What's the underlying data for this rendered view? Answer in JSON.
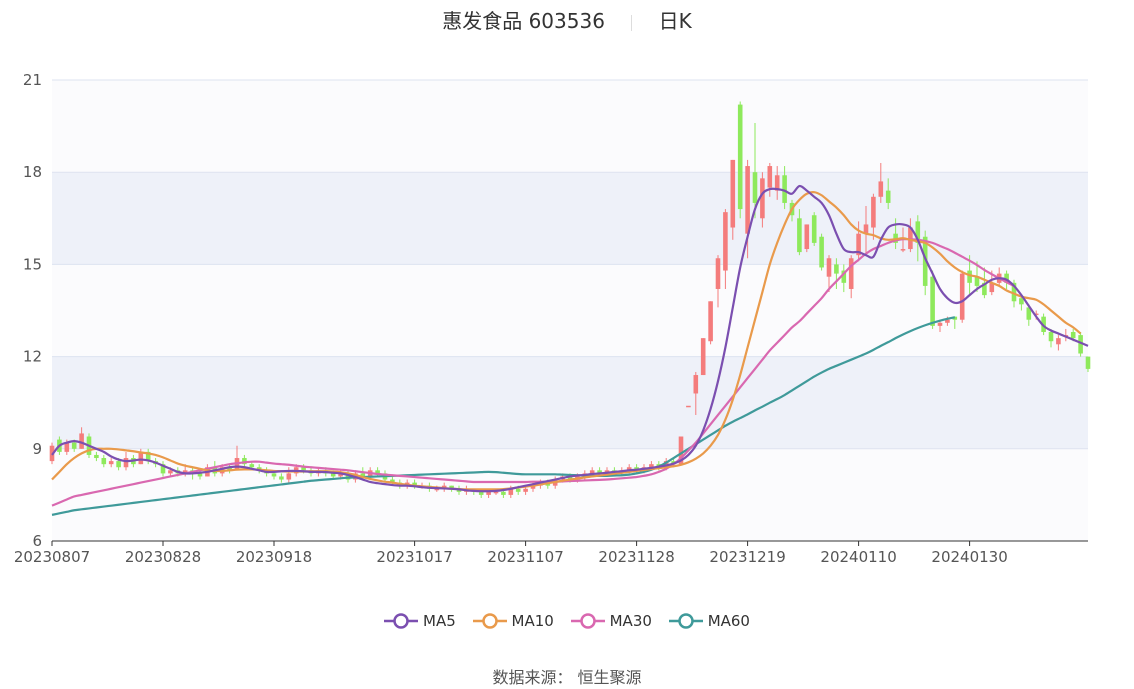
{
  "header": {
    "stock_name": "惠发食品 603536",
    "period": "日K"
  },
  "source": "数据来源： 恒生聚源",
  "colors": {
    "up": "#f47c7c",
    "down": "#8ee95c",
    "ma5": "#7b4fb0",
    "ma10": "#e99a4b",
    "ma30": "#d968b0",
    "ma60": "#3f9a9a",
    "band_light": "#eef1f9",
    "band_white": "#ffffff",
    "grid": "#dde3f0",
    "axis": "#555555"
  },
  "chart_data": {
    "type": "candlestick",
    "title": "惠发食品 603536",
    "subtitle": "日K",
    "ylim": [
      6,
      21
    ],
    "yticks": [
      6,
      9,
      12,
      15,
      18,
      21
    ],
    "xticks": [
      "20230807",
      "20230828",
      "20230918",
      "20231017",
      "20231107",
      "20231128",
      "20231219",
      "20240110",
      "20240130"
    ],
    "xtick_index": [
      0,
      15,
      30,
      49,
      64,
      79,
      94,
      109,
      124
    ],
    "legend": [
      "MA5",
      "MA10",
      "MA30",
      "MA60"
    ],
    "legend_position": "bottom",
    "candles": [
      [
        8.6,
        9.1,
        8.5,
        9.2
      ],
      [
        9.3,
        8.9,
        8.8,
        9.4
      ],
      [
        8.9,
        9.2,
        8.8,
        9.3
      ],
      [
        9.2,
        9.0,
        8.9,
        9.3
      ],
      [
        9.0,
        9.5,
        9.0,
        9.7
      ],
      [
        9.4,
        8.8,
        8.7,
        9.5
      ],
      [
        8.8,
        8.7,
        8.6,
        8.9
      ],
      [
        8.7,
        8.5,
        8.4,
        8.8
      ],
      [
        8.5,
        8.6,
        8.4,
        8.7
      ],
      [
        8.6,
        8.4,
        8.3,
        8.7
      ],
      [
        8.4,
        8.7,
        8.3,
        8.9
      ],
      [
        8.7,
        8.5,
        8.4,
        8.8
      ],
      [
        8.5,
        8.9,
        8.5,
        9.0
      ],
      [
        8.9,
        8.6,
        8.5,
        9.0
      ],
      [
        8.6,
        8.5,
        8.4,
        8.7
      ],
      [
        8.5,
        8.2,
        8.1,
        8.6
      ],
      [
        8.2,
        8.3,
        8.1,
        8.4
      ],
      [
        8.3,
        8.2,
        8.1,
        8.4
      ],
      [
        8.2,
        8.3,
        8.1,
        8.5
      ],
      [
        8.3,
        8.2,
        8.0,
        8.4
      ],
      [
        8.2,
        8.1,
        8.0,
        8.3
      ],
      [
        8.1,
        8.4,
        8.1,
        8.5
      ],
      [
        8.4,
        8.2,
        8.1,
        8.6
      ],
      [
        8.2,
        8.4,
        8.1,
        8.5
      ],
      [
        8.4,
        8.3,
        8.2,
        8.5
      ],
      [
        8.3,
        8.7,
        8.3,
        9.1
      ],
      [
        8.7,
        8.5,
        8.4,
        8.8
      ],
      [
        8.5,
        8.4,
        8.3,
        8.6
      ],
      [
        8.4,
        8.3,
        8.2,
        8.5
      ],
      [
        8.3,
        8.2,
        8.1,
        8.4
      ],
      [
        8.2,
        8.1,
        8.0,
        8.3
      ],
      [
        8.1,
        8.0,
        7.9,
        8.2
      ],
      [
        8.0,
        8.2,
        7.9,
        8.4
      ],
      [
        8.2,
        8.4,
        8.1,
        8.5
      ],
      [
        8.4,
        8.3,
        8.2,
        8.5
      ],
      [
        8.3,
        8.2,
        8.1,
        8.4
      ],
      [
        8.2,
        8.3,
        8.1,
        8.4
      ],
      [
        8.3,
        8.2,
        8.1,
        8.4
      ],
      [
        8.2,
        8.1,
        8.0,
        8.3
      ],
      [
        8.1,
        8.2,
        8.0,
        8.3
      ],
      [
        8.2,
        8.0,
        7.9,
        8.3
      ],
      [
        8.0,
        8.2,
        7.9,
        8.3
      ],
      [
        8.2,
        8.1,
        8.0,
        8.4
      ],
      [
        8.1,
        8.3,
        8.0,
        8.4
      ],
      [
        8.3,
        8.2,
        8.1,
        8.4
      ],
      [
        8.2,
        8.0,
        7.9,
        8.3
      ],
      [
        8.0,
        7.9,
        7.8,
        8.1
      ],
      [
        7.9,
        7.8,
        7.7,
        8.0
      ],
      [
        7.8,
        7.9,
        7.7,
        8.0
      ],
      [
        7.9,
        7.8,
        7.7,
        8.0
      ],
      [
        7.8,
        7.8,
        7.7,
        7.9
      ],
      [
        7.8,
        7.7,
        7.6,
        7.9
      ],
      [
        7.7,
        7.7,
        7.6,
        7.8
      ],
      [
        7.7,
        7.8,
        7.6,
        7.9
      ],
      [
        7.8,
        7.7,
        7.6,
        7.8
      ],
      [
        7.7,
        7.6,
        7.5,
        7.8
      ],
      [
        7.6,
        7.7,
        7.5,
        7.8
      ],
      [
        7.7,
        7.6,
        7.5,
        7.7
      ],
      [
        7.6,
        7.5,
        7.4,
        7.7
      ],
      [
        7.5,
        7.6,
        7.4,
        7.7
      ],
      [
        7.6,
        7.6,
        7.5,
        7.7
      ],
      [
        7.6,
        7.5,
        7.4,
        7.7
      ],
      [
        7.5,
        7.7,
        7.4,
        7.8
      ],
      [
        7.7,
        7.6,
        7.5,
        7.8
      ],
      [
        7.6,
        7.7,
        7.5,
        7.8
      ],
      [
        7.7,
        7.8,
        7.6,
        7.9
      ],
      [
        7.8,
        7.9,
        7.7,
        8.0
      ],
      [
        7.9,
        7.8,
        7.7,
        8.0
      ],
      [
        7.8,
        8.0,
        7.7,
        8.1
      ],
      [
        8.0,
        8.1,
        7.9,
        8.2
      ],
      [
        8.1,
        8.0,
        7.9,
        8.2
      ],
      [
        8.0,
        8.1,
        7.9,
        8.2
      ],
      [
        8.1,
        8.2,
        8.0,
        8.3
      ],
      [
        8.2,
        8.3,
        8.1,
        8.4
      ],
      [
        8.3,
        8.2,
        8.1,
        8.4
      ],
      [
        8.2,
        8.3,
        8.1,
        8.4
      ],
      [
        8.3,
        8.2,
        8.1,
        8.4
      ],
      [
        8.2,
        8.3,
        8.1,
        8.4
      ],
      [
        8.3,
        8.4,
        8.2,
        8.5
      ],
      [
        8.4,
        8.3,
        8.2,
        8.5
      ],
      [
        8.3,
        8.4,
        8.2,
        8.5
      ],
      [
        8.4,
        8.5,
        8.3,
        8.6
      ],
      [
        8.5,
        8.4,
        8.3,
        8.6
      ],
      [
        8.4,
        8.6,
        8.3,
        8.7
      ],
      [
        8.6,
        8.5,
        8.4,
        8.7
      ],
      [
        8.5,
        9.4,
        8.5,
        9.4
      ],
      [
        10.4,
        10.4,
        10.4,
        10.4
      ],
      [
        10.8,
        11.4,
        10.1,
        11.5
      ],
      [
        11.4,
        12.6,
        11.4,
        12.6
      ],
      [
        12.5,
        13.8,
        12.4,
        13.8
      ],
      [
        14.2,
        15.2,
        13.6,
        15.3
      ],
      [
        14.8,
        16.7,
        14.2,
        16.8
      ],
      [
        16.2,
        18.4,
        15.8,
        18.4
      ],
      [
        20.2,
        16.8,
        16.5,
        20.3
      ],
      [
        16.0,
        18.2,
        15.2,
        18.4
      ],
      [
        18.0,
        17.0,
        16.5,
        19.6
      ],
      [
        16.5,
        17.8,
        16.2,
        18.0
      ],
      [
        17.5,
        18.2,
        17.2,
        18.3
      ],
      [
        17.4,
        17.9,
        17.1,
        18.2
      ],
      [
        17.9,
        17.0,
        16.8,
        18.2
      ],
      [
        17.0,
        16.6,
        16.4,
        17.1
      ],
      [
        16.5,
        15.4,
        15.3,
        16.8
      ],
      [
        15.5,
        16.3,
        15.4,
        16.3
      ],
      [
        16.6,
        15.7,
        15.6,
        16.7
      ],
      [
        15.9,
        14.9,
        14.8,
        16.0
      ],
      [
        14.6,
        15.2,
        14.1,
        15.3
      ],
      [
        15.0,
        14.7,
        14.2,
        15.2
      ],
      [
        14.8,
        14.4,
        14.1,
        15.0
      ],
      [
        14.2,
        15.2,
        13.9,
        15.3
      ],
      [
        15.3,
        16.0,
        15.1,
        16.4
      ],
      [
        16.0,
        16.3,
        15.3,
        16.9
      ],
      [
        16.2,
        17.2,
        15.8,
        17.3
      ],
      [
        17.2,
        17.7,
        17.0,
        18.3
      ],
      [
        17.4,
        17.0,
        16.8,
        17.8
      ],
      [
        16.0,
        15.7,
        15.5,
        16.5
      ],
      [
        15.5,
        15.5,
        15.4,
        16.2
      ],
      [
        15.5,
        16.2,
        15.4,
        16.5
      ],
      [
        16.4,
        15.7,
        15.1,
        16.6
      ],
      [
        15.9,
        14.3,
        14.0,
        16.1
      ],
      [
        14.6,
        13.0,
        12.9,
        14.8
      ],
      [
        13.0,
        13.1,
        12.8,
        13.2
      ],
      [
        13.1,
        13.2,
        13.0,
        13.3
      ],
      [
        13.3,
        13.2,
        12.9,
        13.3
      ],
      [
        13.2,
        14.7,
        13.1,
        14.8
      ],
      [
        14.8,
        14.4,
        14.0,
        15.3
      ],
      [
        14.6,
        14.3,
        14.1,
        15.1
      ],
      [
        14.4,
        14.0,
        13.9,
        14.9
      ],
      [
        14.1,
        14.4,
        14.0,
        14.8
      ],
      [
        14.4,
        14.7,
        14.3,
        14.9
      ],
      [
        14.7,
        14.4,
        14.2,
        14.8
      ],
      [
        14.4,
        13.8,
        13.6,
        14.5
      ],
      [
        13.9,
        13.7,
        13.5,
        14.0
      ],
      [
        13.6,
        13.2,
        13.0,
        13.7
      ],
      [
        13.4,
        13.4,
        13.2,
        13.5
      ],
      [
        13.3,
        12.8,
        12.7,
        13.4
      ],
      [
        12.8,
        12.5,
        12.3,
        12.9
      ],
      [
        12.4,
        12.6,
        12.2,
        12.7
      ],
      [
        12.7,
        12.7,
        12.5,
        12.9
      ],
      [
        12.8,
        12.6,
        12.5,
        12.9
      ],
      [
        12.7,
        12.1,
        12.0,
        12.8
      ],
      [
        12.0,
        11.6,
        11.5,
        12.0
      ]
    ],
    "ma5": [
      8.8,
      9.1,
      9.2,
      9.25,
      9.2,
      9.1,
      9.0,
      8.9,
      8.75,
      8.65,
      8.6,
      8.62,
      8.65,
      8.62,
      8.55,
      8.45,
      8.35,
      8.25,
      8.2,
      8.2,
      8.22,
      8.25,
      8.3,
      8.35,
      8.4,
      8.42,
      8.4,
      8.35,
      8.3,
      8.25,
      8.25,
      8.27,
      8.28,
      8.28,
      8.27,
      8.25,
      8.25,
      8.24,
      8.22,
      8.2,
      8.15,
      8.08,
      8.0,
      7.92,
      7.88,
      7.85,
      7.82,
      7.8,
      7.8,
      7.78,
      7.75,
      7.73,
      7.72,
      7.71,
      7.7,
      7.68,
      7.65,
      7.63,
      7.62,
      7.62,
      7.63,
      7.66,
      7.7,
      7.75,
      7.8,
      7.85,
      7.9,
      7.95,
      8.0,
      8.05,
      8.1,
      8.13,
      8.15,
      8.18,
      8.2,
      8.22,
      8.25,
      8.27,
      8.3,
      8.32,
      8.35,
      8.38,
      8.42,
      8.46,
      8.52,
      8.62,
      8.8,
      9.1,
      9.6,
      10.3,
      11.2,
      12.3,
      13.6,
      14.9,
      15.9,
      16.8,
      17.3,
      17.45,
      17.45,
      17.4,
      17.3,
      17.55,
      17.4,
      17.2,
      17.0,
      16.6,
      16.0,
      15.5,
      15.4,
      15.4,
      15.3,
      15.25,
      15.8,
      16.2,
      16.3,
      16.3,
      16.2,
      15.8,
      15.2,
      14.7,
      14.2,
      13.9,
      13.75,
      13.8,
      14.0,
      14.2,
      14.35,
      14.5,
      14.55,
      14.5,
      14.3,
      14.0,
      13.65,
      13.3,
      13.0,
      12.85,
      12.75,
      12.65,
      12.55,
      12.45,
      12.35
    ],
    "ma10": [
      8.0,
      8.25,
      8.5,
      8.7,
      8.85,
      8.95,
      9.0,
      9.0,
      9.0,
      8.98,
      8.95,
      8.92,
      8.88,
      8.85,
      8.8,
      8.72,
      8.62,
      8.52,
      8.45,
      8.4,
      8.35,
      8.3,
      8.28,
      8.28,
      8.3,
      8.32,
      8.33,
      8.33,
      8.32,
      8.3,
      8.28,
      8.27,
      8.26,
      8.26,
      8.26,
      8.27,
      8.27,
      8.27,
      8.26,
      8.24,
      8.2,
      8.15,
      8.08,
      8.02,
      7.97,
      7.93,
      7.9,
      7.86,
      7.83,
      7.8,
      7.78,
      7.76,
      7.74,
      7.72,
      7.7,
      7.69,
      7.68,
      7.68,
      7.68,
      7.68,
      7.68,
      7.69,
      7.71,
      7.74,
      7.77,
      7.8,
      7.84,
      7.88,
      7.92,
      7.96,
      8.0,
      8.03,
      8.07,
      8.1,
      8.13,
      8.16,
      8.19,
      8.22,
      8.25,
      8.28,
      8.31,
      8.34,
      8.37,
      8.4,
      8.43,
      8.48,
      8.56,
      8.68,
      8.85,
      9.1,
      9.45,
      9.95,
      10.6,
      11.4,
      12.3,
      13.2,
      14.1,
      15.0,
      15.7,
      16.3,
      16.8,
      17.1,
      17.3,
      17.35,
      17.25,
      17.05,
      16.85,
      16.6,
      16.3,
      16.1,
      16.0,
      15.95,
      15.85,
      15.8,
      15.82,
      15.85,
      15.8,
      15.75,
      15.7,
      15.55,
      15.35,
      15.1,
      14.9,
      14.75,
      14.65,
      14.6,
      14.5,
      14.4,
      14.3,
      14.15,
      14.05,
      13.95,
      13.9,
      13.85,
      13.7,
      13.5,
      13.3,
      13.1,
      12.95,
      12.75
    ],
    "ma30": [
      7.15,
      7.25,
      7.35,
      7.45,
      7.5,
      7.55,
      7.6,
      7.65,
      7.7,
      7.75,
      7.8,
      7.85,
      7.9,
      7.95,
      8.0,
      8.05,
      8.1,
      8.15,
      8.2,
      8.25,
      8.3,
      8.35,
      8.4,
      8.45,
      8.5,
      8.53,
      8.56,
      8.58,
      8.58,
      8.55,
      8.52,
      8.5,
      8.48,
      8.45,
      8.42,
      8.4,
      8.38,
      8.36,
      8.34,
      8.32,
      8.3,
      8.27,
      8.24,
      8.21,
      8.18,
      8.16,
      8.14,
      8.12,
      8.1,
      8.08,
      8.06,
      8.04,
      8.02,
      8.0,
      7.98,
      7.96,
      7.94,
      7.92,
      7.92,
      7.92,
      7.92,
      7.92,
      7.92,
      7.92,
      7.92,
      7.93,
      7.93,
      7.93,
      7.93,
      7.94,
      7.95,
      7.96,
      7.97,
      7.98,
      7.99,
      8.0,
      8.02,
      8.04,
      8.06,
      8.08,
      8.12,
      8.17,
      8.25,
      8.35,
      8.5,
      8.7,
      8.95,
      9.2,
      9.5,
      9.8,
      10.1,
      10.4,
      10.7,
      11.0,
      11.3,
      11.6,
      11.9,
      12.2,
      12.45,
      12.7,
      12.95,
      13.15,
      13.4,
      13.65,
      13.9,
      14.2,
      14.45,
      14.7,
      14.95,
      15.15,
      15.35,
      15.5,
      15.6,
      15.7,
      15.78,
      15.82,
      15.82,
      15.8,
      15.76,
      15.7,
      15.6,
      15.5,
      15.38,
      15.25,
      15.12,
      14.98,
      14.82,
      14.68,
      14.55,
      14.42,
      14.3
    ],
    "ma60": [
      6.85,
      6.9,
      6.95,
      7.0,
      7.03,
      7.06,
      7.09,
      7.12,
      7.15,
      7.18,
      7.21,
      7.24,
      7.27,
      7.3,
      7.33,
      7.36,
      7.39,
      7.42,
      7.45,
      7.48,
      7.51,
      7.54,
      7.57,
      7.6,
      7.63,
      7.66,
      7.69,
      7.72,
      7.75,
      7.78,
      7.81,
      7.84,
      7.87,
      7.9,
      7.93,
      7.96,
      7.98,
      8.0,
      8.02,
      8.04,
      8.06,
      8.07,
      8.08,
      8.09,
      8.1,
      8.11,
      8.12,
      8.13,
      8.14,
      8.15,
      8.16,
      8.17,
      8.18,
      8.19,
      8.2,
      8.21,
      8.22,
      8.23,
      8.24,
      8.25,
      8.24,
      8.22,
      8.2,
      8.18,
      8.17,
      8.17,
      8.17,
      8.17,
      8.17,
      8.16,
      8.15,
      8.14,
      8.13,
      8.12,
      8.12,
      8.12,
      8.13,
      8.14,
      8.16,
      8.2,
      8.25,
      8.32,
      8.42,
      8.55,
      8.7,
      8.85,
      9.0,
      9.15,
      9.3,
      9.45,
      9.6,
      9.75,
      9.88,
      10.0,
      10.12,
      10.25,
      10.37,
      10.5,
      10.62,
      10.75,
      10.9,
      11.05,
      11.2,
      11.35,
      11.48,
      11.6,
      11.7,
      11.8,
      11.9,
      12.0,
      12.1,
      12.22,
      12.35,
      12.47,
      12.6,
      12.72,
      12.83,
      12.93,
      13.02,
      13.1,
      13.17,
      13.23,
      13.28
    ]
  }
}
